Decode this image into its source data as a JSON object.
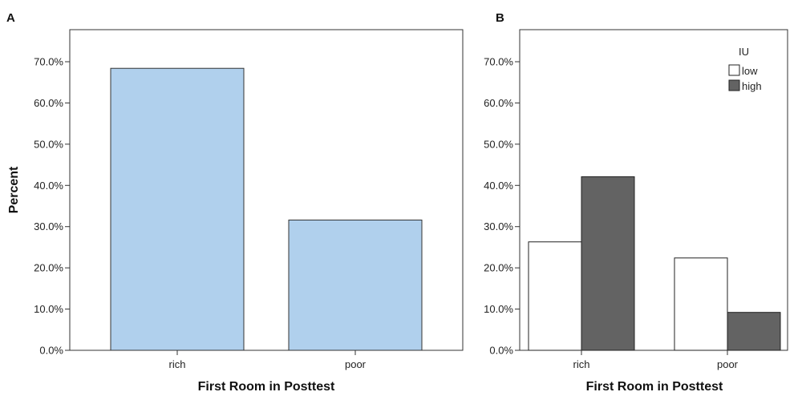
{
  "chart_data": [
    {
      "panel": "A",
      "type": "bar",
      "categories": [
        "rich",
        "poor"
      ],
      "values": [
        68.4,
        31.6
      ],
      "color": "#b0d0ed",
      "xlabel": "First Room in Posttest",
      "ylabel": "Percent",
      "ylim": [
        0,
        75
      ],
      "yticks": [
        "0.0%",
        "10.0%",
        "20.0%",
        "30.0%",
        "40.0%",
        "50.0%",
        "60.0%",
        "70.0%"
      ],
      "grid": false
    },
    {
      "panel": "B",
      "type": "bar",
      "categories": [
        "rich",
        "poor"
      ],
      "series": [
        {
          "name": "low",
          "values": [
            26.3,
            22.4
          ],
          "color": "#ffffff"
        },
        {
          "name": "high",
          "values": [
            42.1,
            9.2
          ],
          "color": "#636363"
        }
      ],
      "legend_title": "IU",
      "legend_position": "top-right",
      "xlabel": "First Room in Posttest",
      "ylabel": "",
      "ylim": [
        0,
        75
      ],
      "yticks": [
        "0.0%",
        "10.0%",
        "20.0%",
        "30.0%",
        "40.0%",
        "50.0%",
        "60.0%",
        "70.0%"
      ],
      "grid": false
    }
  ]
}
